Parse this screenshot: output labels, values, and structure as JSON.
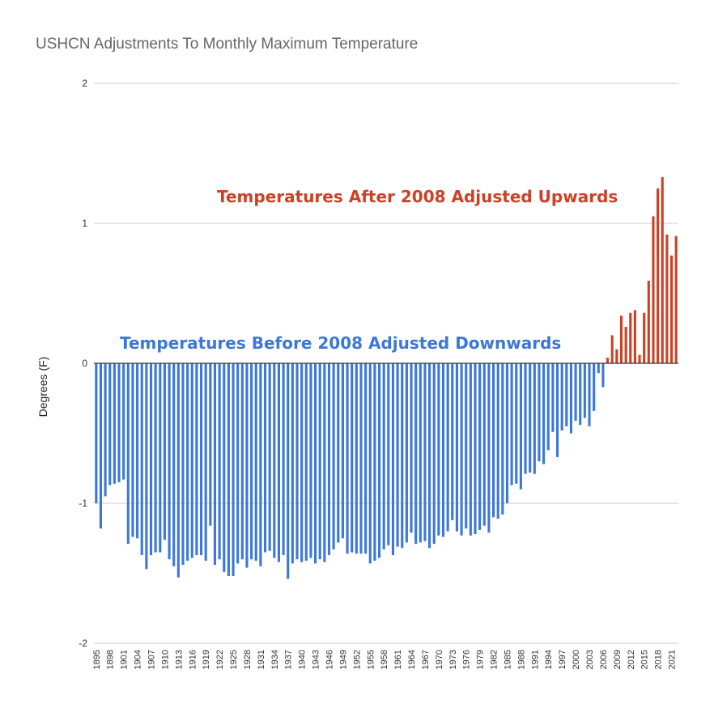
{
  "chart_data": {
    "type": "bar",
    "title": "USHCN Adjustments To Monthly Maximum Temperature",
    "xlabel": "",
    "ylabel": "Degrees (F)",
    "ylim": [
      -2,
      2
    ],
    "yticks": [
      "2",
      "1",
      "0",
      "-1",
      "-2"
    ],
    "grid": true,
    "x_start": 1895,
    "x_labels": [
      "1895",
      "1898",
      "1901",
      "1904",
      "1907",
      "1910",
      "1913",
      "1916",
      "1919",
      "1922",
      "1925",
      "1928",
      "1931",
      "1934",
      "1937",
      "1940",
      "1943",
      "1946",
      "1949",
      "1952",
      "1955",
      "1958",
      "1961",
      "1964",
      "1967",
      "1970",
      "1973",
      "1976",
      "1979",
      "1982",
      "1985",
      "1988",
      "1991",
      "1994",
      "1997",
      "2000",
      "2003",
      "2006",
      "2009",
      "2012",
      "2015",
      "2018",
      "2021"
    ],
    "colors": {
      "negative": "#3c78d8",
      "positive": "#cc4125",
      "grid": "#cccccc",
      "zero_line": "#333333"
    },
    "values": [
      -1.0,
      -1.18,
      -0.95,
      -0.87,
      -0.86,
      -0.85,
      -0.83,
      -1.29,
      -1.24,
      -1.25,
      -1.37,
      -1.47,
      -1.37,
      -1.35,
      -1.35,
      -1.26,
      -1.4,
      -1.45,
      -1.53,
      -1.44,
      -1.41,
      -1.39,
      -1.37,
      -1.37,
      -1.41,
      -1.16,
      -1.44,
      -1.4,
      -1.49,
      -1.52,
      -1.52,
      -1.43,
      -1.4,
      -1.46,
      -1.4,
      -1.41,
      -1.45,
      -1.35,
      -1.34,
      -1.39,
      -1.42,
      -1.37,
      -1.54,
      -1.43,
      -1.4,
      -1.42,
      -1.41,
      -1.39,
      -1.43,
      -1.4,
      -1.42,
      -1.37,
      -1.33,
      -1.28,
      -1.25,
      -1.36,
      -1.35,
      -1.36,
      -1.36,
      -1.36,
      -1.43,
      -1.41,
      -1.39,
      -1.33,
      -1.3,
      -1.37,
      -1.31,
      -1.32,
      -1.28,
      -1.21,
      -1.29,
      -1.28,
      -1.27,
      -1.32,
      -1.29,
      -1.23,
      -1.24,
      -1.2,
      -1.12,
      -1.2,
      -1.23,
      -1.18,
      -1.23,
      -1.22,
      -1.19,
      -1.16,
      -1.21,
      -1.1,
      -1.11,
      -1.08,
      -1.0,
      -0.87,
      -0.86,
      -0.9,
      -0.79,
      -0.78,
      -0.79,
      -0.7,
      -0.72,
      -0.62,
      -0.49,
      -0.67,
      -0.48,
      -0.45,
      -0.5,
      -0.41,
      -0.44,
      -0.39,
      -0.45,
      -0.34,
      -0.07,
      -0.17,
      0.04,
      0.2,
      0.1,
      0.34,
      0.26,
      0.36,
      0.38,
      0.06,
      0.36,
      0.59,
      1.05,
      1.25,
      1.33,
      0.92,
      0.77,
      0.91
    ],
    "annotations": [
      {
        "text": "Temperatures After 2008 Adjusted Upwards",
        "color": "#cc4125"
      },
      {
        "text": "Temperatures Before 2008 Adjusted Downwards",
        "color": "#3c78d8"
      }
    ]
  }
}
